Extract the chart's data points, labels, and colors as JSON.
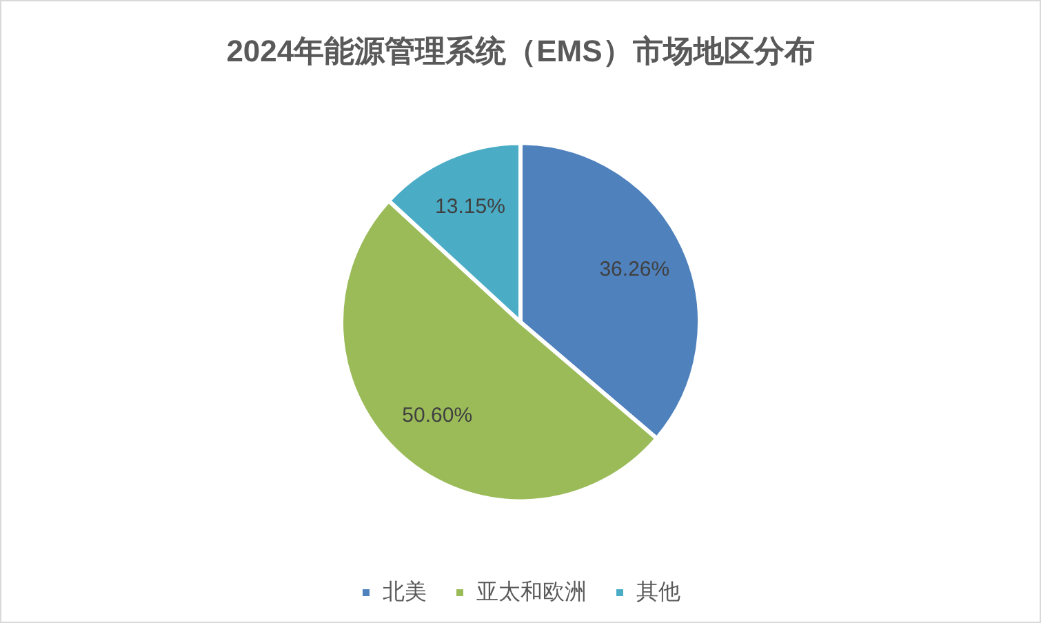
{
  "chart_data": {
    "type": "pie",
    "title": "2024年能源管理系统（EMS）市场地区分布",
    "categories": [
      "北美",
      "亚太和欧洲",
      "其他"
    ],
    "values": [
      36.26,
      50.6,
      13.15
    ],
    "colors": [
      "#4f81bd",
      "#9bbb59",
      "#4bacc6"
    ],
    "value_labels": [
      "36.26%",
      "50.60%",
      "13.15%"
    ],
    "legend": "bottom"
  }
}
